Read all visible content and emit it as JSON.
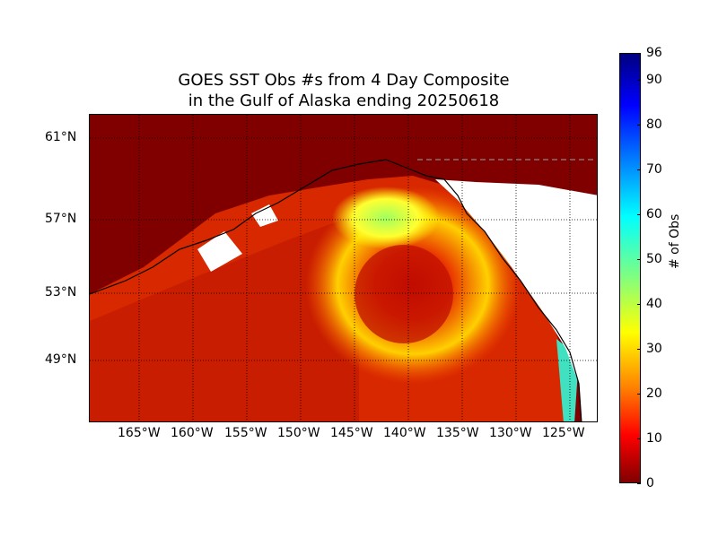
{
  "title": {
    "line1": "GOES SST Obs #s from 4 Day Composite",
    "line2": "in the Gulf of Alaska ending 20250618"
  },
  "map": {
    "lat_labels": [
      "61°N",
      "57°N",
      "53°N",
      "49°N"
    ],
    "lon_labels": [
      "165°W",
      "160°W",
      "155°W",
      "150°W",
      "145°W",
      "140°W",
      "135°W",
      "130°W",
      "125°W"
    ],
    "land_color": "#800000",
    "ocean_low_color": "#c81e00"
  },
  "colorbar": {
    "label": "# of Obs",
    "min": 0,
    "max": 96,
    "ticks": [
      "0",
      "10",
      "20",
      "30",
      "40",
      "50",
      "60",
      "70",
      "80",
      "90",
      "96"
    ],
    "colors": [
      "#800000",
      "#ff0000",
      "#ff8000",
      "#ffff00",
      "#80ff80",
      "#00ffff",
      "#0080ff",
      "#0000ff",
      "#000080"
    ]
  }
}
